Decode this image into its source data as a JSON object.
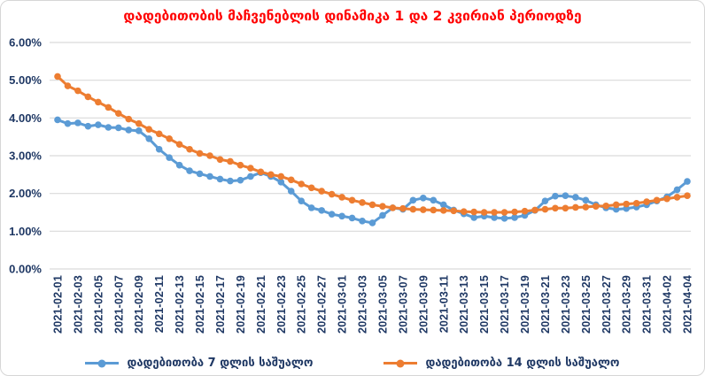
{
  "chart_data": {
    "type": "line",
    "title": "დადებითობის მაჩვენებლის დინამიკა 1 და 2 კვირიან პერიოდზე",
    "title_color": "#FF0000",
    "axis_label_color": "#1F3864",
    "gridline_color": "#D9D9D9",
    "ylim": [
      0,
      6
    ],
    "grid": true,
    "legend_position": "bottom",
    "y_ticks": [
      "0.00%",
      "1.00%",
      "2.00%",
      "3.00%",
      "4.00%",
      "5.00%",
      "6.00%"
    ],
    "x_tick_step": 2,
    "x": [
      "2021-02-01",
      "2021-02-02",
      "2021-02-03",
      "2021-02-04",
      "2021-02-05",
      "2021-02-06",
      "2021-02-07",
      "2021-02-08",
      "2021-02-09",
      "2021-02-10",
      "2021-02-11",
      "2021-02-12",
      "2021-02-13",
      "2021-02-14",
      "2021-02-15",
      "2021-02-16",
      "2021-02-17",
      "2021-02-18",
      "2021-02-19",
      "2021-02-20",
      "2021-02-21",
      "2021-02-22",
      "2021-02-23",
      "2021-02-24",
      "2021-02-25",
      "2021-02-26",
      "2021-02-27",
      "2021-02-28",
      "2021-03-01",
      "2021-03-02",
      "2021-03-03",
      "2021-03-04",
      "2021-03-05",
      "2021-03-06",
      "2021-03-07",
      "2021-03-08",
      "2021-03-09",
      "2021-03-10",
      "2021-03-11",
      "2021-03-12",
      "2021-03-13",
      "2021-03-14",
      "2021-03-15",
      "2021-03-16",
      "2021-03-17",
      "2021-03-18",
      "2021-03-19",
      "2021-03-20",
      "2021-03-21",
      "2021-03-22",
      "2021-03-23",
      "2021-03-24",
      "2021-03-25",
      "2021-03-26",
      "2021-03-27",
      "2021-03-28",
      "2021-03-29",
      "2021-03-30",
      "2021-03-31",
      "2021-04-01",
      "2021-04-02",
      "2021-04-03",
      "2021-04-04"
    ],
    "series": [
      {
        "name": "დადებითობა 7 დლის საშუალო",
        "color": "#5B9BD5",
        "values": [
          3.95,
          3.85,
          3.87,
          3.78,
          3.82,
          3.75,
          3.74,
          3.68,
          3.66,
          3.45,
          3.17,
          2.95,
          2.75,
          2.6,
          2.52,
          2.45,
          2.38,
          2.33,
          2.35,
          2.45,
          2.55,
          2.45,
          2.3,
          2.06,
          1.8,
          1.62,
          1.55,
          1.45,
          1.4,
          1.35,
          1.27,
          1.22,
          1.42,
          1.62,
          1.58,
          1.82,
          1.88,
          1.82,
          1.7,
          1.56,
          1.46,
          1.36,
          1.4,
          1.36,
          1.34,
          1.36,
          1.42,
          1.55,
          1.8,
          1.93,
          1.94,
          1.9,
          1.82,
          1.7,
          1.62,
          1.58,
          1.6,
          1.64,
          1.7,
          1.8,
          1.91,
          2.1,
          2.32
        ]
      },
      {
        "name": "დადებითობა 14 დლის საშუალო",
        "color": "#ED7D31",
        "values": [
          5.1,
          4.85,
          4.72,
          4.56,
          4.42,
          4.28,
          4.12,
          3.97,
          3.85,
          3.7,
          3.58,
          3.45,
          3.3,
          3.17,
          3.06,
          3.0,
          2.9,
          2.85,
          2.75,
          2.67,
          2.57,
          2.5,
          2.45,
          2.36,
          2.25,
          2.15,
          2.06,
          1.98,
          1.9,
          1.82,
          1.76,
          1.7,
          1.66,
          1.62,
          1.6,
          1.58,
          1.57,
          1.56,
          1.55,
          1.54,
          1.52,
          1.51,
          1.5,
          1.5,
          1.5,
          1.51,
          1.53,
          1.56,
          1.58,
          1.61,
          1.61,
          1.63,
          1.64,
          1.66,
          1.67,
          1.7,
          1.72,
          1.74,
          1.78,
          1.82,
          1.86,
          1.9,
          1.94
        ]
      }
    ]
  }
}
